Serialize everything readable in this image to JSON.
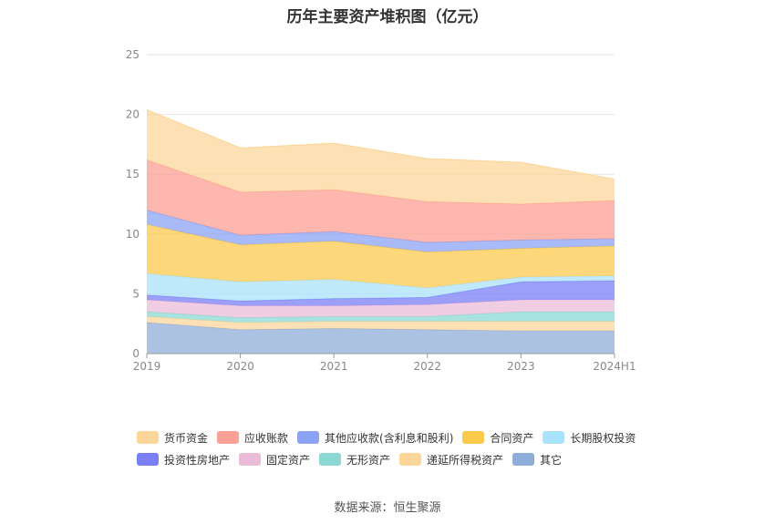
{
  "chart_data": {
    "type": "area",
    "stacked": true,
    "title": "历年主要资产堆积图（亿元）",
    "x": [
      "2019",
      "2020",
      "2021",
      "2022",
      "2023",
      "2024H1"
    ],
    "ylim": [
      0,
      25
    ],
    "yticks": [
      0,
      5,
      10,
      15,
      20,
      25
    ],
    "grid": true,
    "legend_position": "bottom",
    "series": [
      {
        "name": "其它",
        "color": "#8fadd9",
        "values": [
          2.6,
          2.0,
          2.1,
          2.0,
          1.9,
          1.9
        ]
      },
      {
        "name": "递延所得税资产",
        "color": "#fcd699",
        "values": [
          0.5,
          0.6,
          0.6,
          0.7,
          0.8,
          0.8
        ]
      },
      {
        "name": "无形资产",
        "color": "#8cd9d4",
        "values": [
          0.4,
          0.4,
          0.4,
          0.4,
          0.8,
          0.8
        ]
      },
      {
        "name": "固定资产",
        "color": "#ebbcd9",
        "values": [
          1.0,
          1.0,
          0.9,
          1.0,
          1.0,
          1.0
        ]
      },
      {
        "name": "投资性房地产",
        "color": "#7b7ff5",
        "values": [
          0.4,
          0.4,
          0.6,
          0.6,
          1.5,
          1.6
        ]
      },
      {
        "name": "长期股权投资",
        "color": "#abe2fb",
        "values": [
          1.8,
          1.6,
          1.6,
          0.8,
          0.4,
          0.4
        ]
      },
      {
        "name": "合同资产",
        "color": "#fcc94d",
        "values": [
          4.1,
          3.1,
          3.2,
          3.0,
          2.4,
          2.5
        ]
      },
      {
        "name": "其他应收款(含利息和股利)",
        "color": "#8ca3f5",
        "values": [
          1.2,
          0.8,
          0.8,
          0.8,
          0.7,
          0.6
        ]
      },
      {
        "name": "应收账款",
        "color": "#fc9f94",
        "values": [
          4.2,
          3.6,
          3.5,
          3.4,
          3.0,
          3.2
        ]
      },
      {
        "name": "货币资金",
        "color": "#fcd699",
        "values": [
          4.2,
          3.7,
          3.9,
          3.6,
          3.5,
          1.8
        ]
      }
    ],
    "legend_order": [
      "货币资金",
      "应收账款",
      "其他应收款(含利息和股利)",
      "合同资产",
      "长期股权投资",
      "投资性房地产",
      "固定资产",
      "无形资产",
      "递延所得税资产",
      "其它"
    ]
  },
  "source": "数据来源：恒生聚源"
}
